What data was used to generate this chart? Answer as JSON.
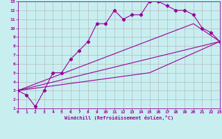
{
  "xlabel": "Windchill (Refroidissement éolien,°C)",
  "background_color": "#c8eef0",
  "line_color": "#990099",
  "xlim": [
    0,
    23
  ],
  "ylim": [
    1,
    13
  ],
  "xticks": [
    0,
    1,
    2,
    3,
    4,
    5,
    6,
    7,
    8,
    9,
    10,
    11,
    12,
    13,
    14,
    15,
    16,
    17,
    18,
    19,
    20,
    21,
    22,
    23
  ],
  "yticks": [
    1,
    2,
    3,
    4,
    5,
    6,
    7,
    8,
    9,
    10,
    11,
    12,
    13
  ],
  "series1_x": [
    0,
    1,
    2,
    3,
    4,
    5,
    6,
    7,
    8,
    9,
    10,
    11,
    12,
    13,
    14,
    15,
    16,
    17,
    18,
    19,
    20,
    21,
    22,
    23
  ],
  "series1_y": [
    3,
    2.5,
    1.2,
    3,
    5,
    5,
    6.5,
    7.5,
    8.5,
    10.5,
    10.5,
    12,
    11,
    11.5,
    11.5,
    13,
    13,
    12.5,
    12,
    12,
    11.5,
    10,
    9.5,
    8.5
  ],
  "series2_x": [
    0,
    23
  ],
  "series2_y": [
    3,
    8.5
  ],
  "series3_x": [
    0,
    15,
    23
  ],
  "series3_y": [
    3,
    5,
    8.5
  ],
  "series4_x": [
    0,
    20,
    23
  ],
  "series4_y": [
    3,
    10.5,
    8.5
  ],
  "grid_color": "#b0b0b0",
  "marker": "D",
  "markersize": 2.2,
  "linewidth": 0.8
}
